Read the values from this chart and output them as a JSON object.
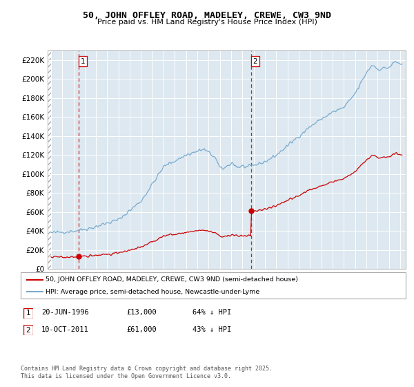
{
  "title": "50, JOHN OFFLEY ROAD, MADELEY, CREWE, CW3 9ND",
  "subtitle": "Price paid vs. HM Land Registry's House Price Index (HPI)",
  "ylim": [
    0,
    230000
  ],
  "yticks": [
    0,
    20000,
    40000,
    60000,
    80000,
    100000,
    120000,
    140000,
    160000,
    180000,
    200000,
    220000
  ],
  "ytick_labels": [
    "£0",
    "£20K",
    "£40K",
    "£60K",
    "£80K",
    "£100K",
    "£120K",
    "£140K",
    "£160K",
    "£180K",
    "£200K",
    "£220K"
  ],
  "xlim_start": 1993.7,
  "xlim_end": 2025.5,
  "sale1_date": 1996.47,
  "sale1_price": 13000,
  "sale1_label": "1",
  "sale1_text": "20-JUN-1996",
  "sale1_price_str": "£13,000",
  "sale1_hpi_str": "64% ↓ HPI",
  "sale2_date": 2011.78,
  "sale2_price": 61000,
  "sale2_label": "2",
  "sale2_text": "10-OCT-2011",
  "sale2_price_str": "£61,000",
  "sale2_hpi_str": "43% ↓ HPI",
  "red_line_color": "#cc0000",
  "blue_line_color": "#7aabcf",
  "vline_color": "#cc0000",
  "legend_label_red": "50, JOHN OFFLEY ROAD, MADELEY, CREWE, CW3 9ND (semi-detached house)",
  "legend_label_blue": "HPI: Average price, semi-detached house, Newcastle-under-Lyme",
  "footer": "Contains HM Land Registry data © Crown copyright and database right 2025.\nThis data is licensed under the Open Government Licence v3.0.",
  "plot_bg_color": "#dde8f0",
  "fig_bg_color": "#ffffff",
  "hpi_seed": 42,
  "red_seed": 17
}
